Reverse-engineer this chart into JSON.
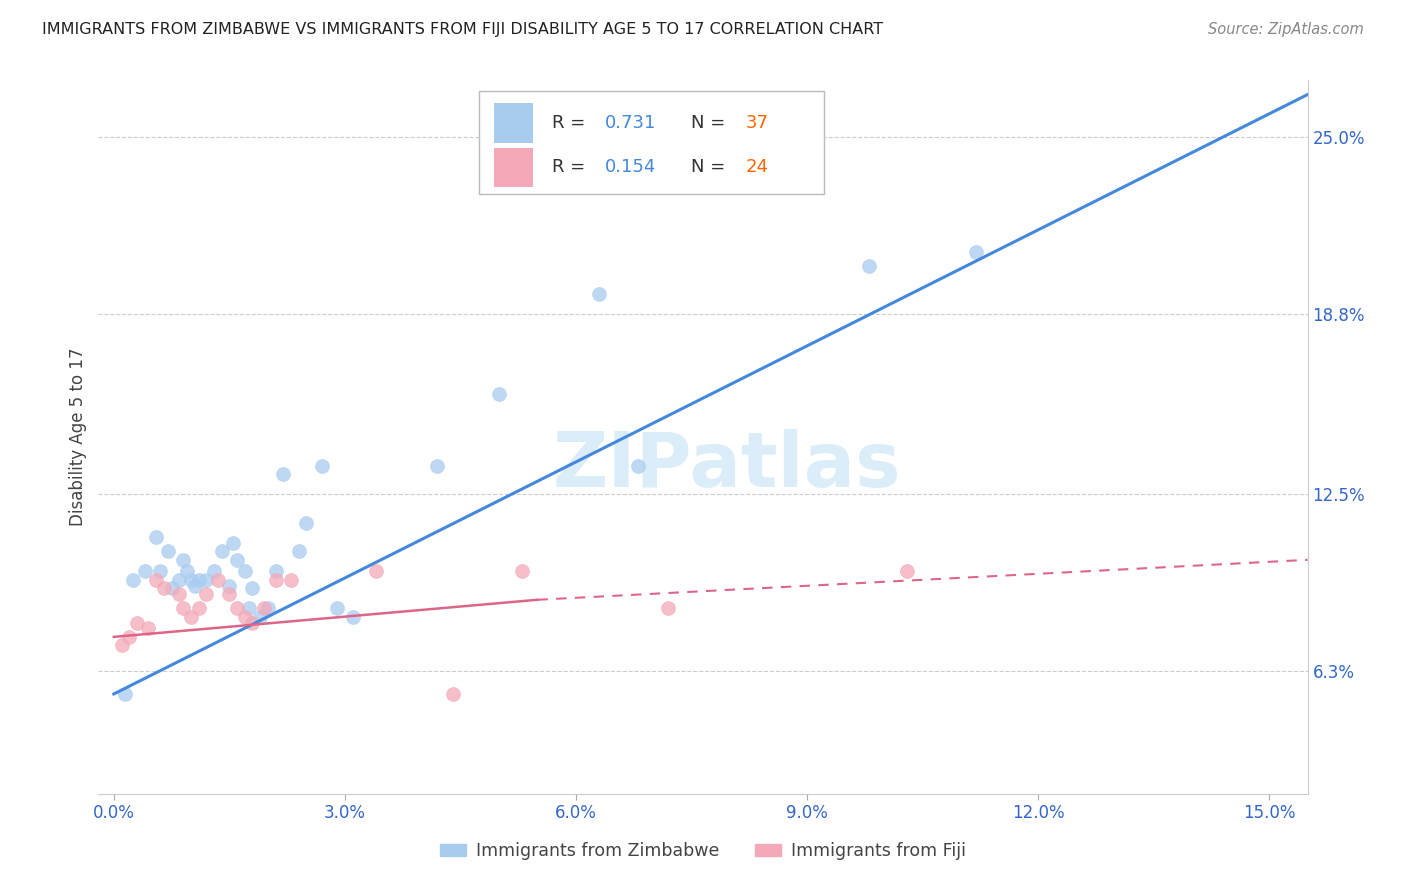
{
  "title": "IMMIGRANTS FROM ZIMBABWE VS IMMIGRANTS FROM FIJI DISABILITY AGE 5 TO 17 CORRELATION CHART",
  "source": "Source: ZipAtlas.com",
  "xlabel_ticks": [
    "0.0%",
    "3.0%",
    "6.0%",
    "9.0%",
    "12.0%",
    "15.0%"
  ],
  "xlabel_vals": [
    0.0,
    3.0,
    6.0,
    9.0,
    12.0,
    15.0
  ],
  "ylabel_label": "Disability Age 5 to 17",
  "ylabel_ticks": [
    "6.3%",
    "12.5%",
    "18.8%",
    "25.0%"
  ],
  "ylabel_vals": [
    6.3,
    12.5,
    18.8,
    25.0
  ],
  "xlim": [
    -0.2,
    15.5
  ],
  "ylim": [
    2.0,
    27.0
  ],
  "watermark": "ZIPatlas",
  "legend_r1": "0.731",
  "legend_n1": "37",
  "legend_r2": "0.154",
  "legend_n2": "24",
  "legend_label1": "Immigrants from Zimbabwe",
  "legend_label2": "Immigrants from Fiji",
  "color_zimbabwe": "#A8CCF0",
  "color_fiji": "#F4A8B8",
  "color_line_zimbabwe": "#4488DD",
  "color_line_fiji": "#DD6688",
  "scatter_size": 100,
  "zim_x": [
    0.15,
    0.25,
    0.4,
    0.55,
    0.6,
    0.7,
    0.75,
    0.85,
    0.9,
    0.95,
    1.0,
    1.05,
    1.1,
    1.2,
    1.3,
    1.4,
    1.5,
    1.55,
    1.6,
    1.7,
    1.75,
    1.8,
    1.9,
    2.0,
    2.1,
    2.2,
    2.4,
    2.5,
    2.7,
    2.9,
    3.1,
    4.2,
    5.0,
    6.3,
    6.8,
    9.8,
    11.2
  ],
  "zim_y": [
    5.5,
    9.5,
    9.8,
    11.0,
    9.8,
    10.5,
    9.2,
    9.5,
    10.2,
    9.8,
    9.5,
    9.3,
    9.5,
    9.5,
    9.8,
    10.5,
    9.3,
    10.8,
    10.2,
    9.8,
    8.5,
    9.2,
    8.2,
    8.5,
    9.8,
    13.2,
    10.5,
    11.5,
    13.5,
    8.5,
    8.2,
    13.5,
    16.0,
    19.5,
    13.5,
    20.5,
    21.0
  ],
  "fiji_x": [
    0.1,
    0.2,
    0.3,
    0.45,
    0.55,
    0.65,
    0.85,
    0.9,
    1.0,
    1.1,
    1.2,
    1.35,
    1.5,
    1.6,
    1.7,
    1.8,
    1.95,
    2.1,
    2.3,
    3.4,
    4.4,
    5.3,
    7.2,
    10.3
  ],
  "fiji_y": [
    7.2,
    7.5,
    8.0,
    7.8,
    9.5,
    9.2,
    9.0,
    8.5,
    8.2,
    8.5,
    9.0,
    9.5,
    9.0,
    8.5,
    8.2,
    8.0,
    8.5,
    9.5,
    9.5,
    9.8,
    5.5,
    9.8,
    8.5,
    9.8
  ],
  "zim_line_x": [
    0.0,
    15.5
  ],
  "zim_line_y": [
    5.5,
    26.5
  ],
  "fiji_line_solid_end": 5.5,
  "fiji_line_y_start": 7.5,
  "fiji_line_y_end_solid": 8.8,
  "fiji_line_y_end_dash": 10.2,
  "grid_color": "#CCCCCC",
  "background_color": "#FFFFFF",
  "r_color": "#4488DD",
  "n_color": "#FF6600"
}
